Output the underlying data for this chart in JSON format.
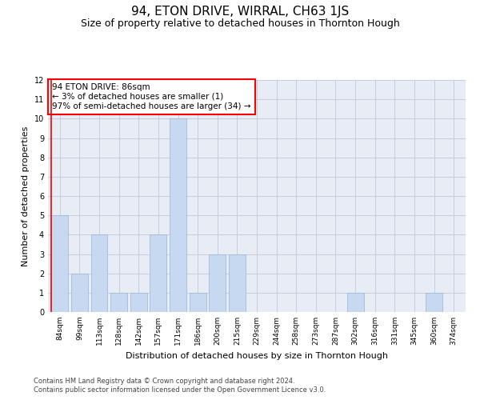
{
  "title1": "94, ETON DRIVE, WIRRAL, CH63 1JS",
  "title2": "Size of property relative to detached houses in Thornton Hough",
  "xlabel": "Distribution of detached houses by size in Thornton Hough",
  "ylabel": "Number of detached properties",
  "categories": [
    "84sqm",
    "99sqm",
    "113sqm",
    "128sqm",
    "142sqm",
    "157sqm",
    "171sqm",
    "186sqm",
    "200sqm",
    "215sqm",
    "229sqm",
    "244sqm",
    "258sqm",
    "273sqm",
    "287sqm",
    "302sqm",
    "316sqm",
    "331sqm",
    "345sqm",
    "360sqm",
    "374sqm"
  ],
  "values": [
    5,
    2,
    4,
    1,
    1,
    4,
    10,
    1,
    3,
    3,
    0,
    0,
    0,
    0,
    0,
    1,
    0,
    0,
    0,
    1,
    0
  ],
  "bar_color": "#c6d9f0",
  "bar_edge_color": "#9ab3d4",
  "annotation_line1": "94 ETON DRIVE: 86sqm",
  "annotation_line2": "← 3% of detached houses are smaller (1)",
  "annotation_line3": "97% of semi-detached houses are larger (34) →",
  "annotation_box_color": "white",
  "annotation_box_edge_color": "red",
  "ylim": [
    0,
    12
  ],
  "yticks": [
    0,
    1,
    2,
    3,
    4,
    5,
    6,
    7,
    8,
    9,
    10,
    11,
    12
  ],
  "grid_color": "#c0c8d8",
  "bg_color": "#e8edf5",
  "footer1": "Contains HM Land Registry data © Crown copyright and database right 2024.",
  "footer2": "Contains public sector information licensed under the Open Government Licence v3.0.",
  "title1_fontsize": 11,
  "title2_fontsize": 9,
  "tick_fontsize": 6.5,
  "ylabel_fontsize": 8,
  "xlabel_fontsize": 8,
  "annotation_fontsize": 7.5,
  "footer_fontsize": 6.0
}
